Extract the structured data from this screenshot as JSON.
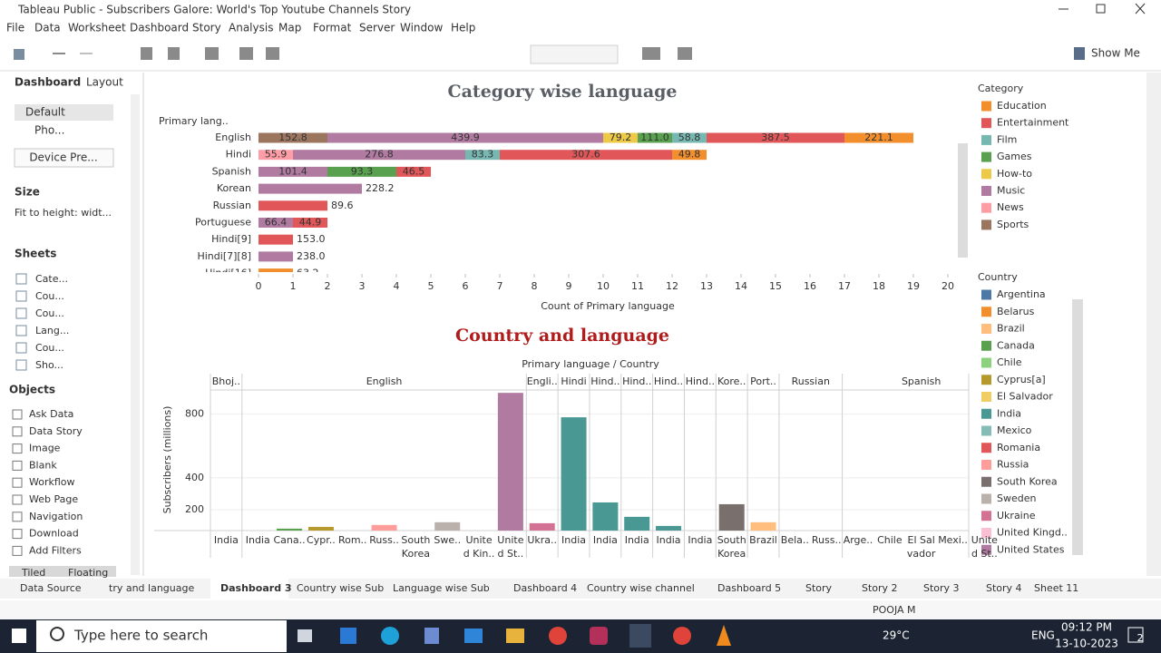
{
  "window": {
    "title": "Tableau Public - Subscribers Galore: World's Top Youtube Channels Story"
  },
  "menu": [
    "File",
    "Data",
    "Worksheet",
    "Dashboard",
    "Story",
    "Analysis",
    "Map",
    "Format",
    "Server",
    "Window",
    "Help"
  ],
  "toolbar": {
    "show_me": "Show Me"
  },
  "left_panel": {
    "tabs": [
      "Dashboard",
      "Layout"
    ],
    "devices": [
      "Default",
      "Pho..."
    ],
    "device_preview": "Device Pre...",
    "size_title": "Size",
    "size_value": "Fit to height: widt...",
    "sheets_title": "Sheets",
    "sheets": [
      "Cate...",
      "Cou...",
      "Cou...",
      "Lang...",
      "Cou...",
      "Sho..."
    ],
    "objects_title": "Objects",
    "objects": [
      "Ask Data",
      "Data Story",
      "Image",
      "Blank",
      "Workflow",
      "Web Page",
      "Navigation",
      "Download",
      "Add Filters"
    ],
    "layout_modes": [
      "Tiled",
      "Floating"
    ]
  },
  "chart_data": [
    {
      "type": "stacked-bar-horizontal",
      "title": "Category wise language",
      "row_header": "Primary lang..",
      "x_label": "Count of Primary language",
      "legend_title": "Category",
      "categories": [
        "English",
        "Hindi",
        "Spanish",
        "Korean",
        "Russian",
        "Portuguese",
        "Hindi[9]",
        "Hindi[7][8]",
        "Hindi[16]"
      ],
      "xlim": [
        0,
        20
      ],
      "xticks": [
        0,
        1,
        2,
        3,
        4,
        5,
        6,
        7,
        8,
        9,
        10,
        11,
        12,
        13,
        14,
        15,
        16,
        17,
        18,
        19,
        20
      ],
      "series": [
        {
          "name": "Education",
          "color": "#f28e2b",
          "values": [
            2,
            1,
            null,
            null,
            null,
            null,
            null,
            null,
            1
          ],
          "labels": [
            "221.1",
            "49.8",
            null,
            null,
            null,
            null,
            null,
            null,
            "63.2"
          ]
        },
        {
          "name": "Entertainment",
          "color": "#e15759",
          "values": [
            4,
            5,
            1,
            null,
            2,
            1,
            1,
            null,
            null
          ],
          "labels": [
            "387.5",
            "307.6",
            "46.5",
            null,
            "89.6",
            "44.9",
            "153.0",
            null,
            null
          ]
        },
        {
          "name": "Film",
          "color": "#76b7b2",
          "values": [
            1,
            1,
            null,
            null,
            null,
            null,
            null,
            null,
            null
          ],
          "labels": [
            "58.8",
            "83.3",
            null,
            null,
            null,
            null,
            null,
            null,
            null
          ]
        },
        {
          "name": "Games",
          "color": "#59a14f",
          "values": [
            1,
            null,
            2,
            null,
            null,
            null,
            null,
            null,
            null
          ],
          "labels": [
            "111.0",
            null,
            "93.3",
            null,
            null,
            null,
            null,
            null,
            null
          ]
        },
        {
          "name": "How-to",
          "color": "#edc948",
          "values": [
            1,
            null,
            null,
            null,
            null,
            null,
            null,
            null,
            null
          ],
          "labels": [
            "79.2",
            null,
            null,
            null,
            null,
            null,
            null,
            null,
            null
          ]
        },
        {
          "name": "Music",
          "color": "#b07aa1",
          "values": [
            8,
            5,
            2,
            3,
            null,
            1,
            null,
            1,
            null
          ],
          "labels": [
            "439.9",
            "276.8",
            "101.4",
            "228.2",
            null,
            "66.4",
            null,
            "238.0",
            null
          ]
        },
        {
          "name": "News",
          "color": "#ff9da7",
          "values": [
            null,
            1,
            null,
            null,
            null,
            null,
            null,
            null,
            null
          ],
          "labels": [
            null,
            "55.9",
            null,
            null,
            null,
            null,
            null,
            null,
            null
          ]
        },
        {
          "name": "Sports",
          "color": "#9c755f",
          "values": [
            2,
            null,
            null,
            null,
            null,
            null,
            null,
            null,
            null
          ],
          "labels": [
            "152.8",
            null,
            null,
            null,
            null,
            null,
            null,
            null,
            null
          ]
        }
      ]
    },
    {
      "type": "bar",
      "title": "Country and language",
      "header": "Primary language / Country",
      "y_label": "Subscribers (millions)",
      "ylim": [
        70,
        950
      ],
      "yticks": [
        200,
        400,
        800
      ],
      "groups": [
        {
          "label": "Bhoj..",
          "categories": [
            "India"
          ],
          "values": [
            60
          ],
          "colors": [
            "#499894"
          ]
        },
        {
          "label": "English",
          "categories": [
            "India",
            "Cana..",
            "Cypr..",
            "Rom..",
            "Russ..",
            "South\nKorea",
            "Swe..",
            "Unite\nd Kin..",
            "Unite\nd St.."
          ],
          "values": [
            60,
            82,
            93,
            60,
            105,
            60,
            122,
            60,
            932
          ],
          "colors": [
            "#499894",
            "#59a14f",
            "#b6992d",
            "#e15759",
            "#ff9d9a",
            "#79706e",
            "#bab0ac",
            "#fabfd2",
            "#b07aa1"
          ]
        },
        {
          "label": "Engli..",
          "categories": [
            "Ukra.."
          ],
          "values": [
            116
          ],
          "colors": [
            "#d37295"
          ]
        },
        {
          "label": "Hindi",
          "categories": [
            "India"
          ],
          "values": [
            779
          ],
          "colors": [
            "#499894"
          ]
        },
        {
          "label": "Hind..",
          "categories": [
            "India"
          ],
          "values": [
            246
          ],
          "colors": [
            "#499894"
          ]
        },
        {
          "label": "Hind..",
          "categories": [
            "India"
          ],
          "values": [
            156
          ],
          "colors": [
            "#499894"
          ]
        },
        {
          "label": "Hind..",
          "categories": [
            "India"
          ],
          "values": [
            99
          ],
          "colors": [
            "#499894"
          ]
        },
        {
          "label": "Hind..",
          "categories": [
            "India"
          ],
          "values": [
            60
          ],
          "colors": [
            "#499894"
          ]
        },
        {
          "label": "Kore..",
          "categories": [
            "South\nKorea"
          ],
          "values": [
            235
          ],
          "colors": [
            "#79706e"
          ]
        },
        {
          "label": "Port..",
          "categories": [
            "Brazil"
          ],
          "values": [
            122
          ],
          "colors": [
            "#ffbe7d"
          ]
        },
        {
          "label": "Russian",
          "categories": [
            "Bela..",
            "Russ.."
          ],
          "values": [
            50,
            50
          ],
          "colors": [
            "#f28e2b",
            "#ff9d9a"
          ]
        },
        {
          "label": "Spanish",
          "categories": [
            "Arge..",
            "Chile",
            "El Sal\nvador",
            "Mexi..",
            "Unite\nd St.."
          ],
          "values": [
            50,
            50,
            50,
            50,
            50
          ],
          "colors": [
            "#4e79a7",
            "#8cd17d",
            "#f1ce63",
            "#86bcb6",
            "#b07aa1"
          ]
        }
      ]
    }
  ],
  "country_legend": {
    "title": "Country",
    "items": [
      {
        "name": "Argentina",
        "color": "#4e79a7"
      },
      {
        "name": "Belarus",
        "color": "#f28e2b"
      },
      {
        "name": "Brazil",
        "color": "#ffbe7d"
      },
      {
        "name": "Canada",
        "color": "#59a14f"
      },
      {
        "name": "Chile",
        "color": "#8cd17d"
      },
      {
        "name": "Cyprus[a]",
        "color": "#b6992d"
      },
      {
        "name": "El Salvador",
        "color": "#f1ce63"
      },
      {
        "name": "India",
        "color": "#499894"
      },
      {
        "name": "Mexico",
        "color": "#86bcb6"
      },
      {
        "name": "Romania",
        "color": "#e15759"
      },
      {
        "name": "Russia",
        "color": "#ff9d9a"
      },
      {
        "name": "South Korea",
        "color": "#79706e"
      },
      {
        "name": "Sweden",
        "color": "#bab0ac"
      },
      {
        "name": "Ukraine",
        "color": "#d37295"
      },
      {
        "name": "United Kingd..",
        "color": "#fabfd2"
      },
      {
        "name": "United States",
        "color": "#b07aa1"
      }
    ]
  },
  "sheet_tabs": [
    "Data Source",
    "try and language",
    "Dashboard 3",
    "Country wise Sub",
    "Language wise Sub",
    "Dashboard 4",
    "Country wise channel",
    "Dashboard 5",
    "Story",
    "Story 2",
    "Story 3",
    "Story 4",
    "Sheet 11"
  ],
  "status": {
    "user": "POOJA M"
  },
  "taskbar": {
    "search": "Type here to search",
    "temperature": "29°C",
    "language": "ENG",
    "time": "09:12 PM",
    "date": "13-10-2023",
    "notifications": "2"
  }
}
